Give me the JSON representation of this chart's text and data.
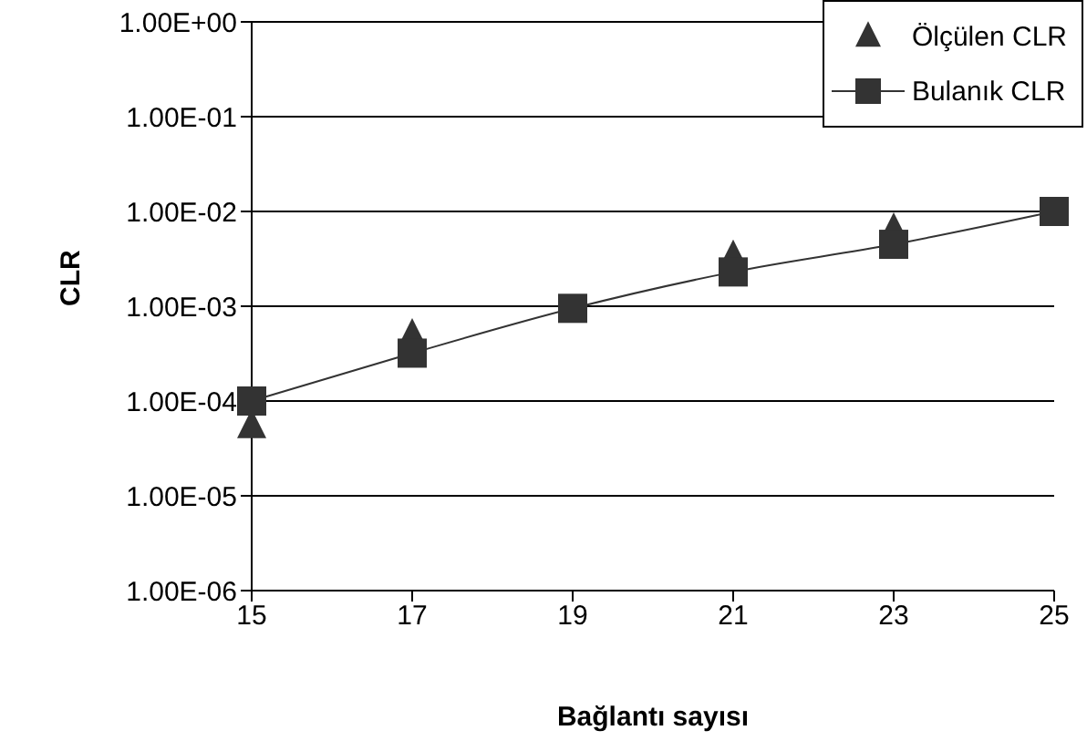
{
  "chart_data": {
    "type": "scatter",
    "xlabel": "Bağlantı sayısı",
    "ylabel": "CLR",
    "log": "y",
    "grid": "y",
    "legend": "top right",
    "xlim": [
      15,
      25
    ],
    "xticks": [
      15,
      17,
      19,
      21,
      23,
      25
    ],
    "ylim": [
      1e-06,
      1
    ],
    "yticks": [
      {
        "value": 1e-06,
        "label": "1.00E-06"
      },
      {
        "value": 1e-05,
        "label": "1.00E-05"
      },
      {
        "value": 0.0001,
        "label": "1.00E-04"
      },
      {
        "value": 0.001,
        "label": "1.00E-03"
      },
      {
        "value": 0.01,
        "label": "1.00E-02"
      },
      {
        "value": 0.1,
        "label": "1.00E-01"
      },
      {
        "value": 1,
        "label": "1.00E+00"
      }
    ],
    "series": [
      {
        "name": "Ölçülen CLR",
        "type": "scatter",
        "marker": "triangle",
        "color": "#333333",
        "x": [
          15,
          17,
          21,
          23
        ],
        "values": [
          5.4e-05,
          0.00049,
          0.0033,
          0.0064
        ]
      },
      {
        "name": "Bulanık CLR",
        "type": "line",
        "marker": "square",
        "color": "#333333",
        "x": [
          15,
          17,
          19,
          21,
          23,
          25
        ],
        "values": [
          0.0001,
          0.00032,
          0.00095,
          0.0023,
          0.0045,
          0.01
        ]
      }
    ]
  }
}
